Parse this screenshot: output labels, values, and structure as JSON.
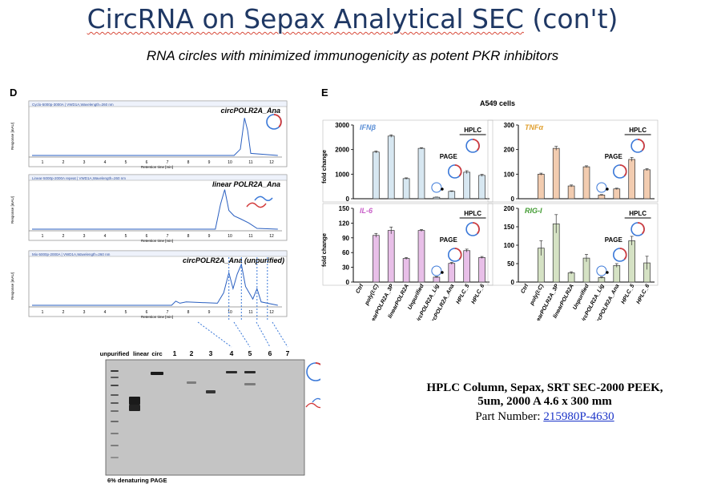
{
  "title_main": "CircRNA on Sepax Analytical SEC",
  "title_tail": " (con't)",
  "subtitle": "RNA circles with minimized immunogenicity as potent PKR inhibitors",
  "panel_d": {
    "letter": "D",
    "traces": [
      {
        "header": "Cyclo-5000p-3000A | VWD1A,Wavelength=260 nm",
        "label": "circPOLR2A_Ana"
      },
      {
        "header": "Linear-5000p-2000A repeat | VWD1A,Wavelength=260 nm",
        "label": "linear POLR2A_Ana"
      },
      {
        "header": "Mix-5000p-2000A | VWD1A,Wavelength=260 nm",
        "label": "circPOLR2A_Ana (unpurified)"
      }
    ],
    "ylabel": "Response [mAU]",
    "xlabel": "Retention time [min]",
    "xticks": [
      "1",
      "2",
      "3",
      "4",
      "5",
      "6",
      "7",
      "8",
      "9",
      "10",
      "11",
      "12"
    ],
    "gel": {
      "lanes": [
        "unpurified",
        "linear",
        "circ",
        "1",
        "2",
        "3",
        "4",
        "5",
        "6",
        "7"
      ],
      "caption": "6% denaturing PAGE"
    }
  },
  "panel_e": {
    "letter": "E",
    "cells": "A549 cells",
    "ylabel": "fold change",
    "categories": [
      "Ctrl",
      "poly(I:C)",
      "linearPOLR2A_3P",
      "linearPOLR2A",
      "Unpurified",
      "circPOLR2A_Lig",
      "circPOLR2A_Ana",
      "HPLC_5",
      "HPLC_6"
    ],
    "page_label": "PAGE",
    "hplc_label": "HPLC",
    "colors": {
      "IFNb": "#5b8fd6",
      "TNFa": "#e0a030",
      "IL6": "#c85ec8",
      "RIGI": "#3f9a2f"
    }
  },
  "chart_data": [
    {
      "type": "bar",
      "title": "IFNβ",
      "ylabel": "fold change",
      "ylim": [
        0,
        3000
      ],
      "yticks": [
        0,
        1000,
        2000,
        3000
      ],
      "categories": [
        "Ctrl",
        "poly(I:C)",
        "linearPOLR2A_3P",
        "linearPOLR2A",
        "Unpurified",
        "circPOLR2A_Lig",
        "circPOLR2A_Ana",
        "HPLC_5",
        "HPLC_6"
      ],
      "values": [
        0,
        1900,
        2550,
        820,
        2050,
        60,
        300,
        1080,
        950
      ],
      "errors": [
        0,
        40,
        50,
        30,
        30,
        10,
        20,
        60,
        40
      ]
    },
    {
      "type": "bar",
      "title": "TNFα",
      "ylabel": "fold change",
      "ylim": [
        0,
        300
      ],
      "yticks": [
        0,
        100,
        200,
        300
      ],
      "categories": [
        "Ctrl",
        "poly(I:C)",
        "linearPOLR2A_3P",
        "linearPOLR2A",
        "Unpurified",
        "circPOLR2A_Lig",
        "circPOLR2A_Ana",
        "HPLC_5",
        "HPLC_6"
      ],
      "values": [
        0,
        100,
        205,
        52,
        130,
        15,
        40,
        160,
        118
      ],
      "errors": [
        0,
        4,
        8,
        4,
        4,
        2,
        3,
        8,
        4
      ]
    },
    {
      "type": "bar",
      "title": "IL-6",
      "ylabel": "fold change",
      "ylim": [
        0,
        150
      ],
      "yticks": [
        0,
        30,
        60,
        90,
        120,
        150
      ],
      "categories": [
        "Ctrl",
        "poly(I:C)",
        "linearPOLR2A_3P",
        "linearPOLR2A",
        "Unpurified",
        "circPOLR2A_Lig",
        "circPOLR2A_Ana",
        "HPLC_5",
        "HPLC_6"
      ],
      "values": [
        0,
        95,
        105,
        48,
        105,
        10,
        38,
        64,
        50
      ],
      "errors": [
        0,
        4,
        7,
        2,
        2,
        1,
        2,
        3,
        2
      ]
    },
    {
      "type": "bar",
      "title": "RIG-I",
      "ylabel": "fold change",
      "ylim": [
        0,
        200
      ],
      "yticks": [
        0,
        50,
        100,
        150,
        200
      ],
      "categories": [
        "Ctrl",
        "poly(I:C)",
        "linearPOLR2A_3P",
        "linearPOLR2A",
        "Unpurified",
        "circPOLR2A_Lig",
        "circPOLR2A_Ana",
        "HPLC_5",
        "HPLC_6"
      ],
      "values": [
        0,
        92,
        158,
        25,
        65,
        12,
        45,
        112,
        52
      ],
      "errors": [
        0,
        20,
        25,
        3,
        10,
        2,
        5,
        12,
        18
      ]
    }
  ],
  "info": {
    "line1": "HPLC Column, Sepax, SRT SEC-2000 PEEK,",
    "line2": "5um, 2000 A 4.6 x 300 mm",
    "part_label": "Part Number: ",
    "part_number": "215980P-4630"
  }
}
